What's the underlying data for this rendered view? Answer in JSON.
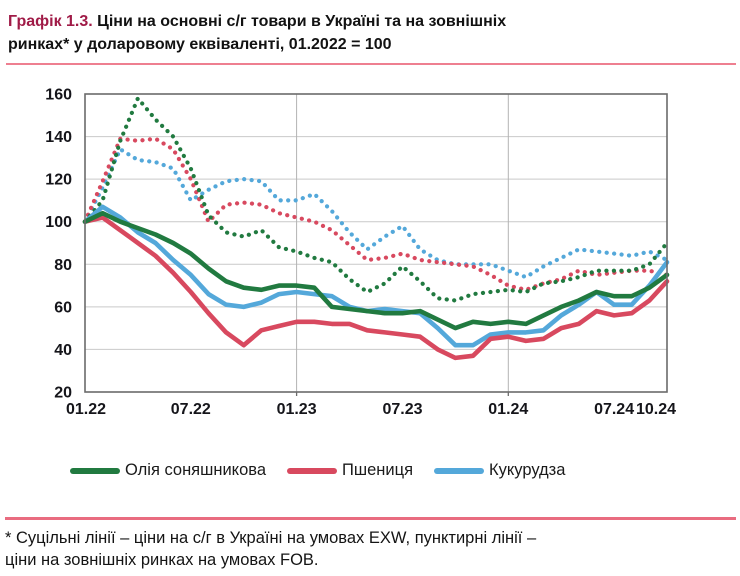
{
  "title": {
    "prefix": "Графік 1.3.",
    "line1": " Ціни на основні с/г товари в Україні та на зовнішніх",
    "line2": "ринках* у доларовому еквіваленті, 01.2022 = 100"
  },
  "footnote": {
    "line1": "* Суцільні лінії – ціни на с/г в Україні на умовах EXW, пунктирні лінії –",
    "line2": "ціни на зовнішніх ринках на умовах FOB."
  },
  "legend": [
    {
      "label": "Олія соняшникова",
      "color": "#217a40"
    },
    {
      "label": "Пшениця",
      "color": "#d8495f"
    },
    {
      "label": "Кукурудза",
      "color": "#54a8da"
    }
  ],
  "colors": {
    "accent_title": "#a01b47",
    "rule_pink": "#ee7f90",
    "grid": "#c9c9c9",
    "year_grid": "#b3b3b3",
    "plot_border": "#6b6b6b",
    "axis_text": "#15151a",
    "green": "#217a40",
    "red": "#d8495f",
    "blue": "#54a8da"
  },
  "chart_data": {
    "type": "line",
    "title": "Ціни на основні с/г товари в Україні та на зовнішніх ринках у доларовому еквіваленті, 01.2022 = 100",
    "xlabel": "",
    "ylabel": "",
    "ylim": [
      20,
      160
    ],
    "y_ticks": [
      20,
      40,
      60,
      80,
      100,
      120,
      140,
      160
    ],
    "x_tick_labels": [
      "01.22",
      "07.22",
      "01.23",
      "07.23",
      "01.24",
      "07.24",
      "10.24"
    ],
    "x_tick_month_index": [
      0,
      6,
      12,
      18,
      24,
      30,
      33
    ],
    "vertical_gridline_month_index": [
      12,
      24
    ],
    "grid": "horizontal",
    "legend_position": "bottom",
    "x_months": [
      "01.22",
      "02.22",
      "03.22",
      "04.22",
      "05.22",
      "06.22",
      "07.22",
      "08.22",
      "09.22",
      "10.22",
      "11.22",
      "12.22",
      "01.23",
      "02.23",
      "03.23",
      "04.23",
      "05.23",
      "06.23",
      "07.23",
      "08.23",
      "09.23",
      "10.23",
      "11.23",
      "12.23",
      "01.24",
      "02.24",
      "03.24",
      "04.24",
      "05.24",
      "06.24",
      "07.24",
      "08.24",
      "09.24",
      "10.24"
    ],
    "series": [
      {
        "name": "Кукурудза (зовнішні ринки, FOB)",
        "legend": "Кукурудза",
        "style": "dotted",
        "color": "#54a8da",
        "values": [
          100,
          116,
          134,
          129,
          128,
          125,
          110,
          115,
          119,
          120,
          119,
          110,
          110,
          113,
          105,
          95,
          87,
          93,
          98,
          87,
          82,
          80,
          80,
          80,
          77,
          74,
          79,
          83,
          87,
          86,
          85,
          84,
          86,
          82
        ]
      },
      {
        "name": "Пшениця (зовнішні ринки, FOB)",
        "legend": "Пшениця",
        "style": "dotted",
        "color": "#d8495f",
        "values": [
          100,
          119,
          139,
          138,
          139,
          134,
          120,
          100,
          108,
          109,
          108,
          104,
          102,
          100,
          96,
          89,
          82,
          83,
          85,
          82,
          81,
          80,
          79,
          75,
          70,
          68,
          71,
          73,
          77,
          75,
          76,
          77,
          77,
          75
        ]
      },
      {
        "name": "Олія соняшникова (зовнішні ринки, FOB)",
        "legend": "Олія соняшникова",
        "style": "dotted",
        "color": "#217a40",
        "values": [
          100,
          110,
          138,
          158,
          148,
          140,
          125,
          103,
          95,
          93,
          96,
          88,
          86,
          83,
          81,
          73,
          67,
          71,
          79,
          72,
          64,
          63,
          66,
          67,
          68,
          67,
          71,
          72,
          74,
          77,
          77,
          77,
          80,
          90
        ]
      },
      {
        "name": "Кукурудза (Україна, EXW)",
        "legend": "Кукурудза",
        "style": "solid",
        "color": "#54a8da",
        "values": [
          100,
          107,
          102,
          95,
          90,
          82,
          75,
          66,
          61,
          60,
          62,
          66,
          67,
          66,
          65,
          60,
          58,
          59,
          58,
          57,
          50,
          42,
          42,
          47,
          48,
          48,
          49,
          56,
          61,
          67,
          61,
          61,
          70,
          81
        ]
      },
      {
        "name": "Пшениця (Україна, EXW)",
        "legend": "Пшениця",
        "style": "solid",
        "color": "#d8495f",
        "values": [
          100,
          102,
          96,
          90,
          84,
          76,
          67,
          57,
          48,
          42,
          49,
          51,
          53,
          53,
          52,
          52,
          49,
          48,
          47,
          46,
          40,
          36,
          37,
          45,
          46,
          44,
          45,
          50,
          52,
          58,
          56,
          57,
          63,
          72
        ]
      },
      {
        "name": "Олія соняшникова (Україна, EXW)",
        "legend": "Олія соняшникова",
        "style": "solid",
        "color": "#217a40",
        "values": [
          100,
          104,
          100,
          97,
          94,
          90,
          85,
          78,
          72,
          69,
          68,
          70,
          70,
          69,
          60,
          59,
          58,
          57,
          57,
          58,
          54,
          50,
          53,
          52,
          53,
          52,
          56,
          60,
          63,
          67,
          65,
          65,
          69,
          75
        ]
      }
    ]
  }
}
